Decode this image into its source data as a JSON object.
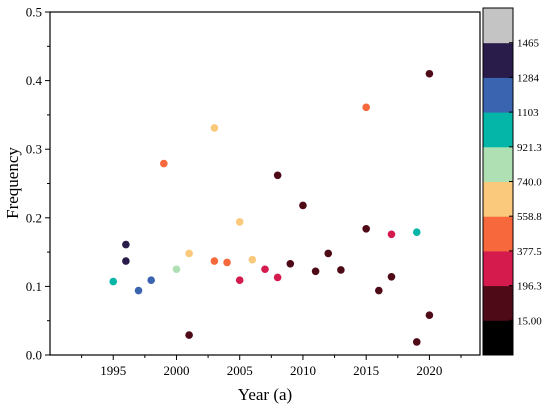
{
  "chart_data": {
    "type": "scatter",
    "title": "",
    "xlabel": "Year (a)",
    "ylabel": "Frequency",
    "xlim": [
      1990,
      2024
    ],
    "ylim": [
      0.0,
      0.5
    ],
    "x_ticks": [
      "1995",
      "2000",
      "2005",
      "2010",
      "2015",
      "2020"
    ],
    "y_ticks": [
      "0.0",
      "0.1",
      "0.2",
      "0.3",
      "0.4",
      "0.5"
    ],
    "grid": false,
    "colorbar": {
      "labels": [
        "15.00",
        "196.3",
        "377.5",
        "558.8",
        "740.0",
        "921.3",
        "1103",
        "1284",
        "1465"
      ],
      "colors": [
        "#000000",
        "#4f0a17",
        "#d51a4e",
        "#f7693c",
        "#fbc97b",
        "#afe0b4",
        "#03b6a8",
        "#3a63b0",
        "#2a1c4a",
        "#c4c4c4"
      ]
    },
    "points": [
      {
        "x": 1995,
        "y": 0.107,
        "color": "#03b6a8"
      },
      {
        "x": 1996,
        "y": 0.161,
        "color": "#2a1c4a"
      },
      {
        "x": 1996,
        "y": 0.137,
        "color": "#2a1c4a"
      },
      {
        "x": 1997,
        "y": 0.094,
        "color": "#3a63b0"
      },
      {
        "x": 1998,
        "y": 0.109,
        "color": "#3a63b0"
      },
      {
        "x": 1999,
        "y": 0.279,
        "color": "#f7693c"
      },
      {
        "x": 2000,
        "y": 0.125,
        "color": "#afe0b4"
      },
      {
        "x": 2001,
        "y": 0.148,
        "color": "#fbc97b"
      },
      {
        "x": 2001,
        "y": 0.029,
        "color": "#4f0a17"
      },
      {
        "x": 2003,
        "y": 0.331,
        "color": "#fbc97b"
      },
      {
        "x": 2003,
        "y": 0.137,
        "color": "#f7693c"
      },
      {
        "x": 2004,
        "y": 0.135,
        "color": "#f7693c"
      },
      {
        "x": 2005,
        "y": 0.194,
        "color": "#fbc97b"
      },
      {
        "x": 2005,
        "y": 0.109,
        "color": "#d51a4e"
      },
      {
        "x": 2006,
        "y": 0.139,
        "color": "#fbc97b"
      },
      {
        "x": 2007,
        "y": 0.125,
        "color": "#d51a4e"
      },
      {
        "x": 2008,
        "y": 0.262,
        "color": "#4f0a17"
      },
      {
        "x": 2008,
        "y": 0.113,
        "color": "#d51a4e"
      },
      {
        "x": 2009,
        "y": 0.133,
        "color": "#4f0a17"
      },
      {
        "x": 2010,
        "y": 0.218,
        "color": "#4f0a17"
      },
      {
        "x": 2011,
        "y": 0.122,
        "color": "#4f0a17"
      },
      {
        "x": 2012,
        "y": 0.148,
        "color": "#4f0a17"
      },
      {
        "x": 2013,
        "y": 0.124,
        "color": "#4f0a17"
      },
      {
        "x": 2015,
        "y": 0.361,
        "color": "#f7693c"
      },
      {
        "x": 2015,
        "y": 0.184,
        "color": "#4f0a17"
      },
      {
        "x": 2016,
        "y": 0.094,
        "color": "#4f0a17"
      },
      {
        "x": 2017,
        "y": 0.176,
        "color": "#d51a4e"
      },
      {
        "x": 2017,
        "y": 0.114,
        "color": "#4f0a17"
      },
      {
        "x": 2019,
        "y": 0.179,
        "color": "#03b6a8"
      },
      {
        "x": 2019,
        "y": 0.019,
        "color": "#4f0a17"
      },
      {
        "x": 2020,
        "y": 0.41,
        "color": "#4f0a17"
      },
      {
        "x": 2020,
        "y": 0.058,
        "color": "#4f0a17"
      }
    ]
  }
}
